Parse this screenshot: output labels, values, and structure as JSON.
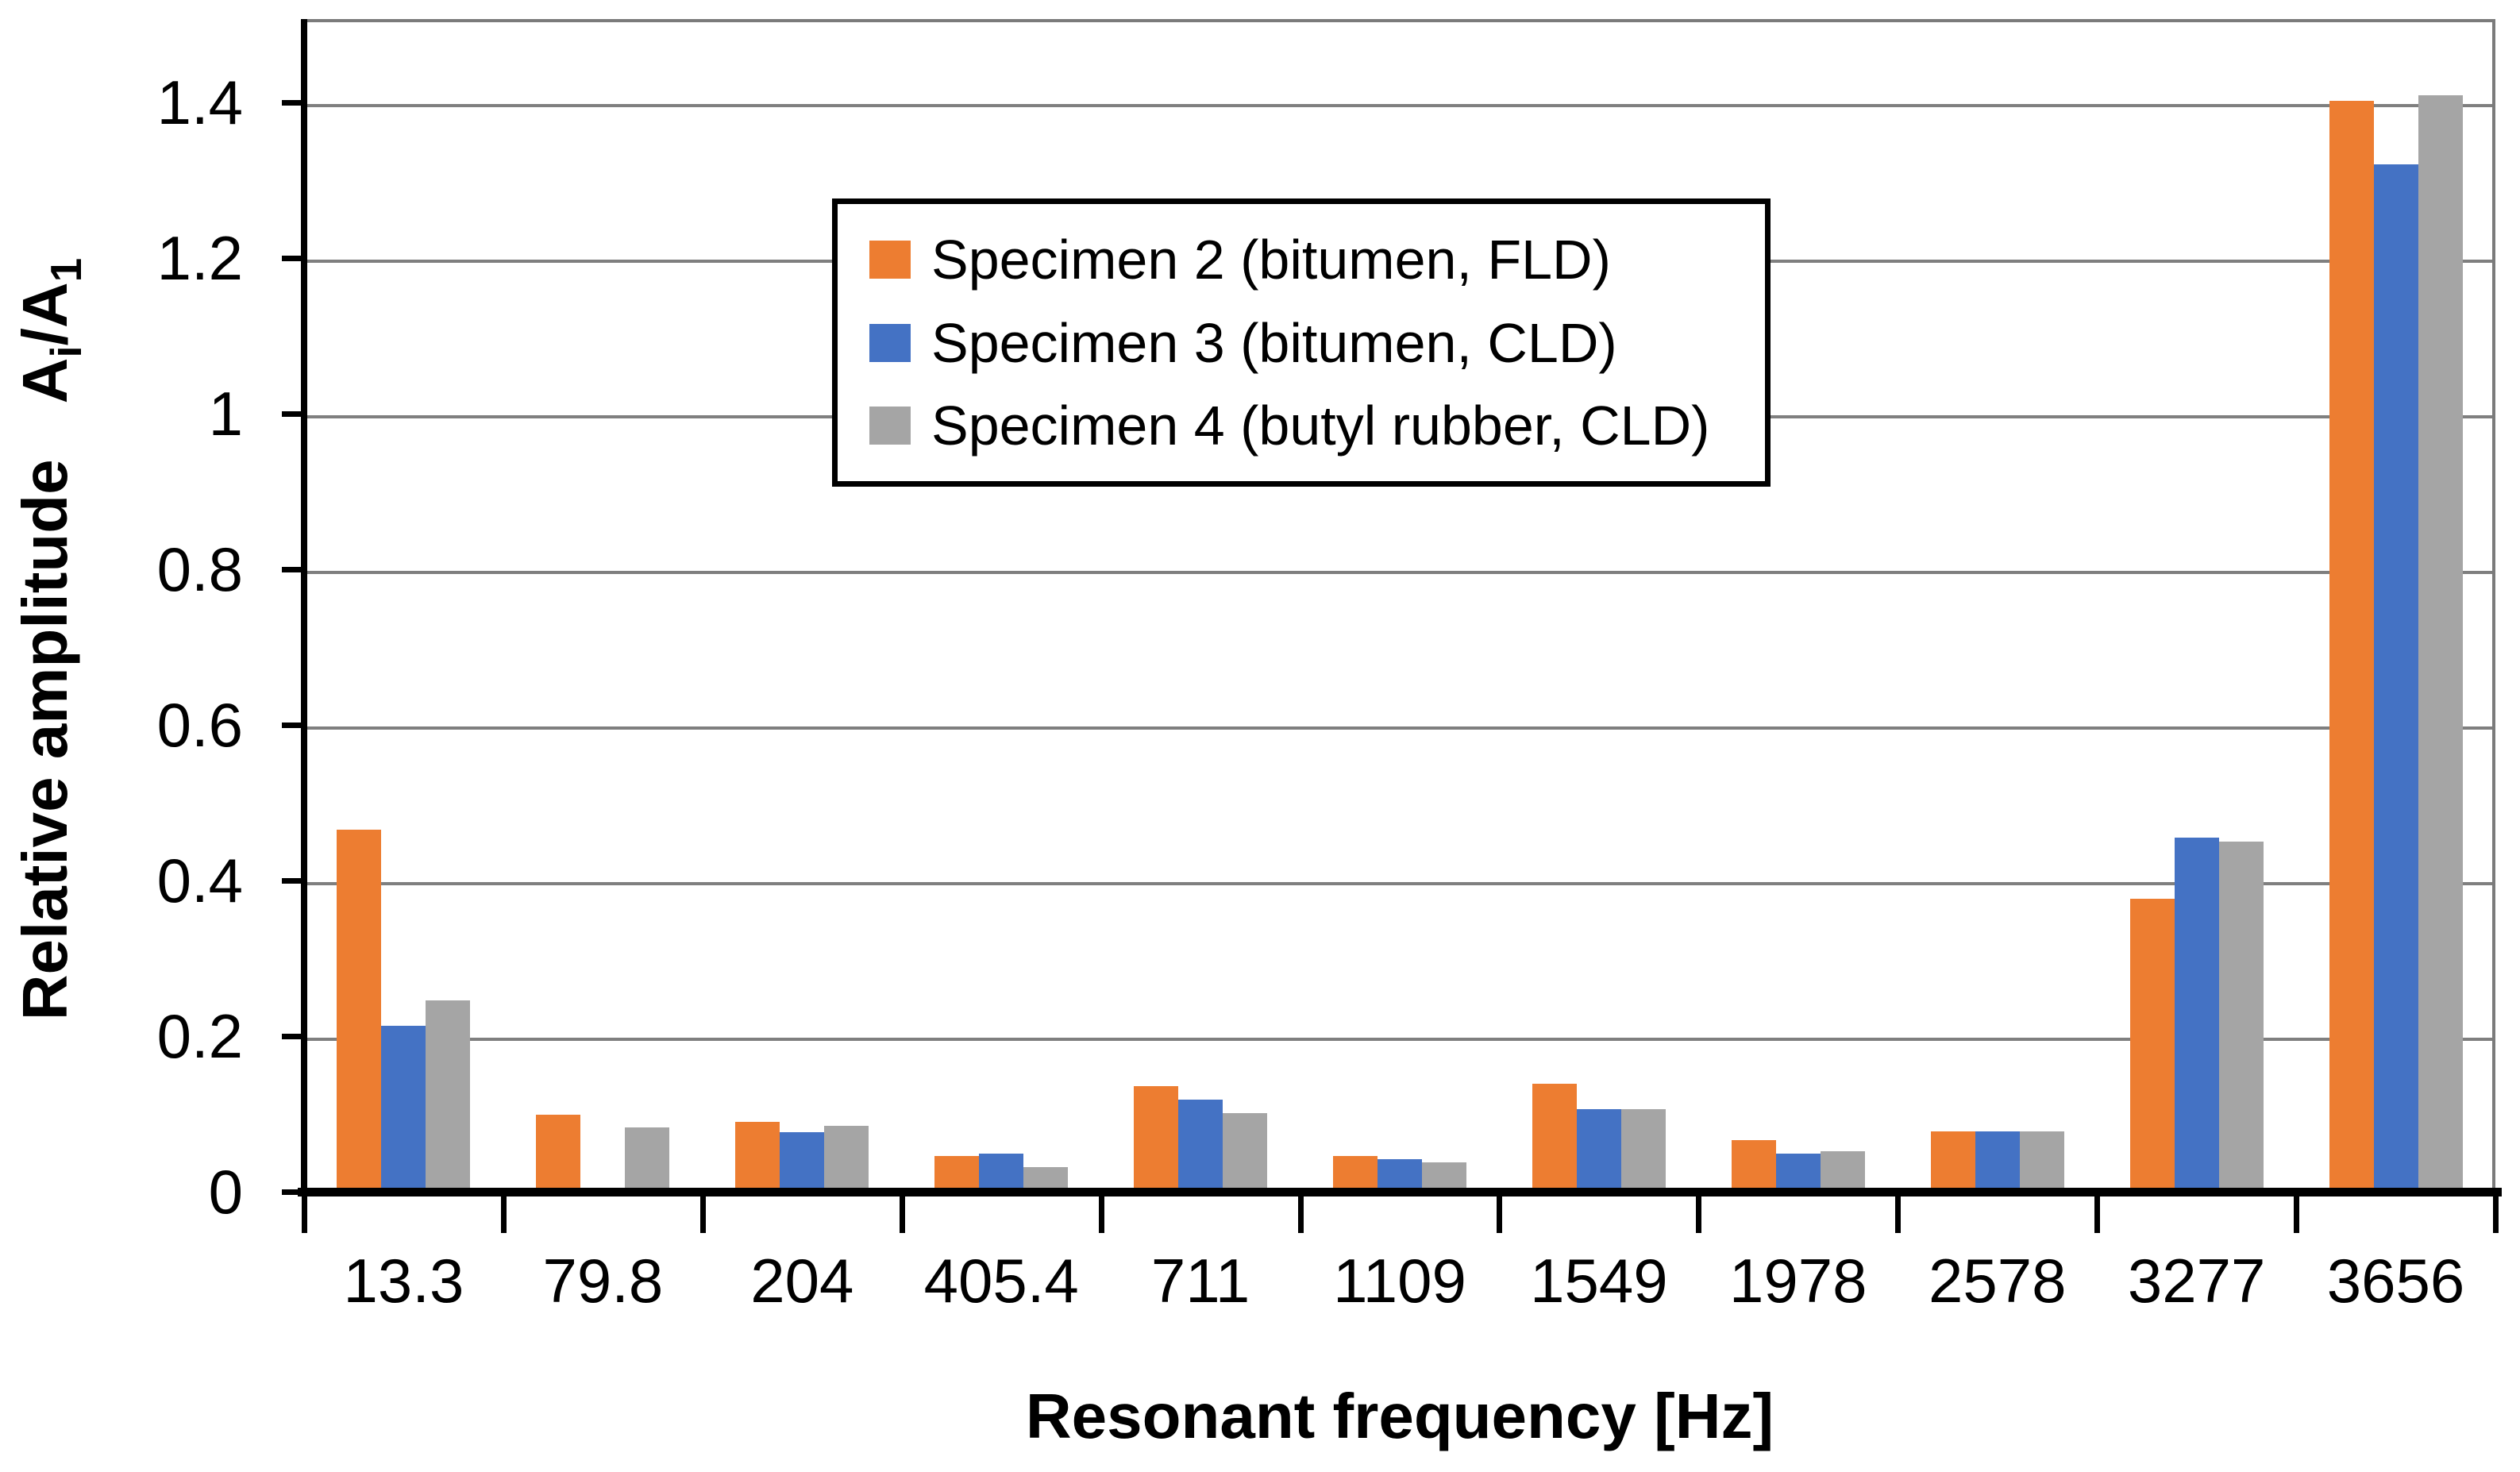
{
  "chart_data": {
    "type": "bar",
    "title": "",
    "xlabel": "Resonant frequency [Hz]",
    "ylabel": "Relative amplitude Ai/A1",
    "ylabel_main": "Relative amplitude",
    "ylabel_symbol": {
      "a1": "A",
      "sub1": "i",
      "a2": "/A",
      "sub2": "1"
    },
    "categories": [
      "13.3",
      "79.8",
      "204",
      "405.4",
      "711",
      "1109",
      "1549",
      "1978",
      "2578",
      "3277",
      "3656"
    ],
    "series": [
      {
        "name": "Specimen 2 (bitumen, FLD)",
        "color": "#ED7D31",
        "values": [
          0.465,
          0.099,
          0.09,
          0.046,
          0.136,
          0.046,
          0.139,
          0.066,
          0.078,
          0.377,
          1.402
        ]
      },
      {
        "name": "Specimen 3 (bitumen, CLD)",
        "color": "#4472C4",
        "values": [
          0.213,
          0.0,
          0.077,
          0.049,
          0.118,
          0.042,
          0.106,
          0.049,
          0.078,
          0.455,
          1.32
        ]
      },
      {
        "name": "Specimen 4 (butyl rubber, CLD)",
        "color": "#A5A5A5",
        "values": [
          0.246,
          0.083,
          0.085,
          0.032,
          0.101,
          0.038,
          0.106,
          0.052,
          0.078,
          0.45,
          1.409
        ]
      }
    ],
    "y_ticks": [
      {
        "label": "0",
        "value": 0
      },
      {
        "label": "0.2",
        "value": 0.2
      },
      {
        "label": "0.4",
        "value": 0.4
      },
      {
        "label": "0.6",
        "value": 0.6
      },
      {
        "label": "0.8",
        "value": 0.8
      },
      {
        "label": "1",
        "value": 1
      },
      {
        "label": "1.2",
        "value": 1.2
      },
      {
        "label": "1.4",
        "value": 1.4
      }
    ],
    "ylim": [
      0,
      1.507
    ],
    "grid": true,
    "legend_position": "inside-top-center"
  },
  "colors": {
    "axis": "#000000",
    "gridline": "#7f7f7f",
    "plot_border": "#7b7b7b",
    "legend_border": "#000000",
    "background": "#ffffff",
    "text": "#000000"
  }
}
